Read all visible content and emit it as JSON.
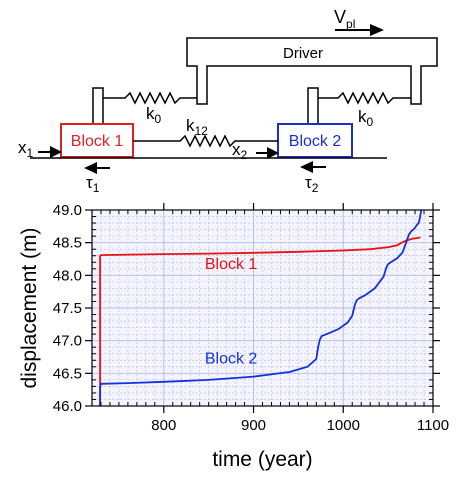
{
  "diagram": {
    "velocity_label": "V",
    "velocity_sub": "pl",
    "driver_label": "Driver",
    "spring_k0_left": {
      "base": "k",
      "sub": "0"
    },
    "spring_k0_right": {
      "base": "k",
      "sub": "0"
    },
    "spring_k12": {
      "base": "k",
      "sub": "12"
    },
    "block1": {
      "label": "Block 1",
      "color": "#dd2222"
    },
    "block2": {
      "label": "Block 2",
      "color": "#1a2fcc"
    },
    "x1": {
      "base": "x",
      "sub": "1"
    },
    "x2": {
      "base": "x",
      "sub": "2"
    },
    "tau1": {
      "base": "τ",
      "sub": "1"
    },
    "tau2": {
      "base": "τ",
      "sub": "2"
    }
  },
  "chart_data": {
    "type": "line",
    "xlabel": "time (year)",
    "ylabel": "displacement (m)",
    "xlim": [
      720,
      1100
    ],
    "ylim": [
      46.0,
      49.0
    ],
    "xticks": [
      800,
      900,
      1000,
      1100
    ],
    "yticks": [
      46.0,
      46.5,
      47.0,
      47.5,
      48.0,
      48.5,
      49.0
    ],
    "grid": true,
    "background": "#f4f4ff",
    "grid_color": "#b8b8e8",
    "series": [
      {
        "name": "Block 1",
        "color": "#ee1111",
        "x": [
          729,
          729,
          730,
          760,
          800,
          850,
          900,
          950,
          1000,
          1030,
          1050,
          1060,
          1065,
          1068,
          1072,
          1077,
          1082,
          1086
        ],
        "y": [
          46.0,
          48.3,
          48.31,
          48.318,
          48.325,
          48.333,
          48.345,
          48.36,
          48.38,
          48.4,
          48.43,
          48.46,
          48.5,
          48.52,
          48.54,
          48.56,
          48.57,
          48.58
        ]
      },
      {
        "name": "Block 2",
        "color": "#1133dd",
        "x": [
          729,
          729,
          730,
          760,
          800,
          850,
          900,
          940,
          960,
          970,
          972,
          974,
          976,
          985,
          995,
          1005,
          1010,
          1013,
          1015,
          1018,
          1025,
          1035,
          1045,
          1048,
          1050,
          1052,
          1054,
          1060,
          1066,
          1070,
          1073,
          1076,
          1078,
          1080,
          1082,
          1084,
          1085,
          1086,
          1087
        ],
        "y": [
          46.0,
          46.3,
          46.34,
          46.35,
          46.37,
          46.4,
          46.45,
          46.52,
          46.6,
          46.72,
          46.9,
          47.02,
          47.07,
          47.12,
          47.18,
          47.28,
          47.38,
          47.55,
          47.62,
          47.65,
          47.7,
          47.8,
          47.98,
          48.12,
          48.17,
          48.19,
          48.21,
          48.26,
          48.35,
          48.5,
          48.62,
          48.68,
          48.7,
          48.73,
          48.77,
          48.8,
          48.85,
          48.92,
          49.0
        ]
      }
    ],
    "annotations": [
      {
        "text": "Block 1",
        "x": 875,
        "y": 48.1,
        "color": "#ee1111"
      },
      {
        "text": "Block 2",
        "x": 875,
        "y": 46.65,
        "color": "#1133dd"
      }
    ]
  }
}
